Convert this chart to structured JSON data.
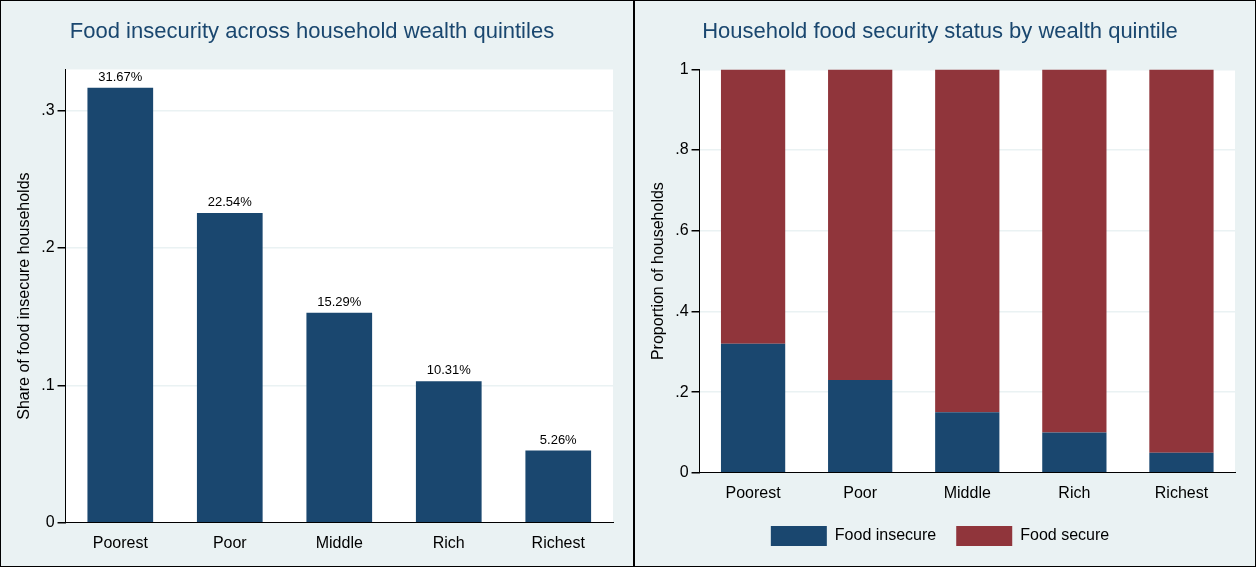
{
  "chart_data": [
    {
      "type": "bar",
      "title": "Food insecurity across household wealth quintiles",
      "ylabel": "Share of food insecure households",
      "categories": [
        "Poorest",
        "Poor",
        "Middle",
        "Rich",
        "Richest"
      ],
      "values": [
        0.3167,
        0.2254,
        0.1529,
        0.1031,
        0.0526
      ],
      "color": "#1a476f",
      "value_labels": [
        "31.67%",
        "22.54%",
        "15.29%",
        "10.31%",
        "5.26%"
      ],
      "ylim": [
        0,
        0.33
      ],
      "yticks": [
        {
          "value": 0,
          "label": "0"
        },
        {
          "value": 0.1,
          "label": ".1"
        },
        {
          "value": 0.2,
          "label": ".2"
        },
        {
          "value": 0.3,
          "label": ".3"
        }
      ],
      "grid": "y"
    },
    {
      "type": "bar",
      "title": "Household food security status by wealth quintile",
      "ylabel": "Proportion of households",
      "categories": [
        "Poorest",
        "Poor",
        "Middle",
        "Rich",
        "Richest"
      ],
      "stacked": true,
      "series": [
        {
          "name": "Food insecure",
          "color": "#1a476f",
          "values": [
            0.32,
            0.23,
            0.15,
            0.1,
            0.05
          ]
        },
        {
          "name": "Food secure",
          "color": "#90353b",
          "values": [
            0.68,
            0.77,
            0.85,
            0.9,
            0.95
          ]
        }
      ],
      "ylim": [
        0,
        1
      ],
      "yticks": [
        {
          "value": 0,
          "label": "0"
        },
        {
          "value": 0.2,
          "label": ".2"
        },
        {
          "value": 0.4,
          "label": ".4"
        },
        {
          "value": 0.6,
          "label": ".6"
        },
        {
          "value": 0.8,
          "label": ".8"
        },
        {
          "value": 1,
          "label": "1"
        }
      ],
      "grid": "y",
      "legend": "bottom"
    }
  ]
}
